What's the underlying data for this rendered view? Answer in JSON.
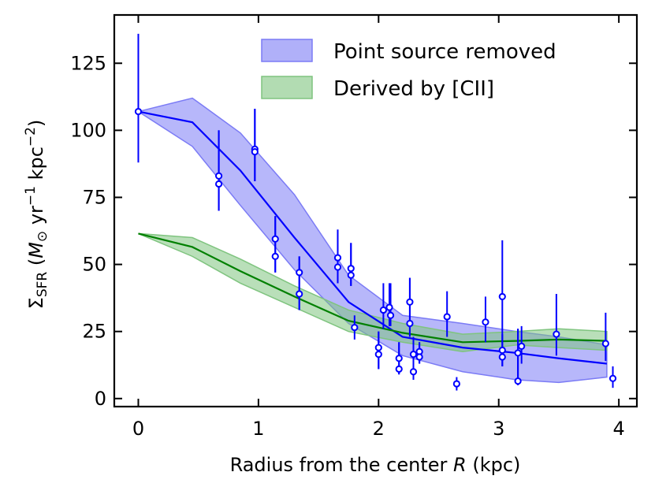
{
  "chart_data": {
    "type": "scatter",
    "xlabel": "Radius from the center R (kpc)",
    "xlabel_parts": {
      "pre": "Radius from the center ",
      "italic": "R",
      "post": " (kpc)"
    },
    "ylabel": "Σ_SFR (M_⊙ yr^−1 kpc^−2)",
    "ylabel_parts": {
      "sigma": "Σ",
      "sub": "SFR",
      "open": " (",
      "m": "M",
      "sun": "⊙",
      "yr": " yr",
      "exp1": "−1",
      "kpc": " kpc",
      "exp2": "−2",
      "close": ")"
    },
    "xlim": [
      -0.2,
      4.15
    ],
    "ylim": [
      -3,
      143
    ],
    "xticks": [
      0,
      1,
      2,
      3,
      4
    ],
    "yticks": [
      0,
      25,
      50,
      75,
      100,
      125
    ],
    "grid": false,
    "legend_position": "top-right",
    "colors": {
      "blue": "#0000ff",
      "blue_fill": "#7b7bf5",
      "green": "#008000",
      "green_fill": "#7fc47f"
    },
    "series": [
      {
        "name": "Point source removed",
        "kind": "band",
        "x": [
          0,
          0.45,
          0.85,
          1.3,
          1.75,
          2.2,
          2.7,
          3.15,
          3.5,
          3.9
        ],
        "lower": [
          107,
          94,
          72,
          48,
          28,
          16,
          10,
          7,
          6,
          8
        ],
        "upper": [
          107,
          112,
          99,
          76,
          46,
          31,
          28,
          25,
          23,
          20
        ],
        "line": [
          107,
          103,
          85,
          60,
          36,
          23,
          19,
          17,
          15,
          13
        ]
      },
      {
        "name": "Derived by [CII]",
        "kind": "band",
        "x": [
          0,
          0.45,
          0.85,
          1.3,
          1.75,
          2.2,
          2.7,
          3.15,
          3.5,
          3.9
        ],
        "lower": [
          61.5,
          53,
          43,
          34,
          25,
          21,
          17.5,
          20,
          19,
          18
        ],
        "upper": [
          61.5,
          60,
          52,
          42,
          33,
          28,
          24,
          25,
          26,
          25
        ],
        "line": [
          61.5,
          56.5,
          47.5,
          38,
          29,
          24.5,
          21,
          21.5,
          22,
          21.5
        ]
      }
    ],
    "points": [
      {
        "x": 0.0,
        "y": 107,
        "lo": 88,
        "hi": 136
      },
      {
        "x": 0.67,
        "y": 83,
        "lo": 70,
        "hi": 100
      },
      {
        "x": 0.67,
        "y": 80,
        "lo": 70,
        "hi": 100
      },
      {
        "x": 0.97,
        "y": 93,
        "lo": 81,
        "hi": 108
      },
      {
        "x": 0.97,
        "y": 92,
        "lo": 81,
        "hi": 108
      },
      {
        "x": 1.14,
        "y": 59.5,
        "lo": 47,
        "hi": 68
      },
      {
        "x": 1.14,
        "y": 53,
        "lo": 47,
        "hi": 68
      },
      {
        "x": 1.34,
        "y": 47,
        "lo": 33,
        "hi": 53
      },
      {
        "x": 1.34,
        "y": 39,
        "lo": 33,
        "hi": 53
      },
      {
        "x": 1.66,
        "y": 52.5,
        "lo": 43,
        "hi": 63
      },
      {
        "x": 1.66,
        "y": 49,
        "lo": 43,
        "hi": 63
      },
      {
        "x": 1.77,
        "y": 48.5,
        "lo": 42,
        "hi": 58
      },
      {
        "x": 1.77,
        "y": 46,
        "lo": 42,
        "hi": 58
      },
      {
        "x": 1.8,
        "y": 26.5,
        "lo": 22,
        "hi": 31
      },
      {
        "x": 2.0,
        "y": 19,
        "lo": 11,
        "hi": 25
      },
      {
        "x": 2.0,
        "y": 16.5,
        "lo": 11,
        "hi": 25
      },
      {
        "x": 2.04,
        "y": 33,
        "lo": 26,
        "hi": 43
      },
      {
        "x": 2.09,
        "y": 34,
        "lo": 27,
        "hi": 43
      },
      {
        "x": 2.1,
        "y": 31,
        "lo": 27,
        "hi": 43
      },
      {
        "x": 2.17,
        "y": 15,
        "lo": 9,
        "hi": 21
      },
      {
        "x": 2.17,
        "y": 11,
        "lo": 9,
        "hi": 21
      },
      {
        "x": 2.26,
        "y": 36,
        "lo": 23,
        "hi": 45
      },
      {
        "x": 2.26,
        "y": 28,
        "lo": 23,
        "hi": 45
      },
      {
        "x": 2.29,
        "y": 16.5,
        "lo": 7,
        "hi": 23
      },
      {
        "x": 2.29,
        "y": 10,
        "lo": 7,
        "hi": 23
      },
      {
        "x": 2.34,
        "y": 17.5,
        "lo": 13,
        "hi": 21
      },
      {
        "x": 2.34,
        "y": 15.5,
        "lo": 13,
        "hi": 21
      },
      {
        "x": 2.57,
        "y": 30.5,
        "lo": 23,
        "hi": 40
      },
      {
        "x": 2.65,
        "y": 5.5,
        "lo": 3,
        "hi": 8
      },
      {
        "x": 2.89,
        "y": 28.5,
        "lo": 21,
        "hi": 38
      },
      {
        "x": 3.03,
        "y": 38,
        "lo": 24,
        "hi": 59
      },
      {
        "x": 3.03,
        "y": 18,
        "lo": 12,
        "hi": 24
      },
      {
        "x": 3.03,
        "y": 15.5,
        "lo": 12,
        "hi": 24
      },
      {
        "x": 3.16,
        "y": 17,
        "lo": 5,
        "hi": 26
      },
      {
        "x": 3.16,
        "y": 6.5,
        "lo": 5,
        "hi": 26
      },
      {
        "x": 3.19,
        "y": 19.5,
        "lo": 13,
        "hi": 27
      },
      {
        "x": 3.48,
        "y": 24,
        "lo": 16,
        "hi": 39
      },
      {
        "x": 3.89,
        "y": 20.5,
        "lo": 14,
        "hi": 32
      },
      {
        "x": 3.95,
        "y": 7.5,
        "lo": 4,
        "hi": 12
      }
    ]
  }
}
